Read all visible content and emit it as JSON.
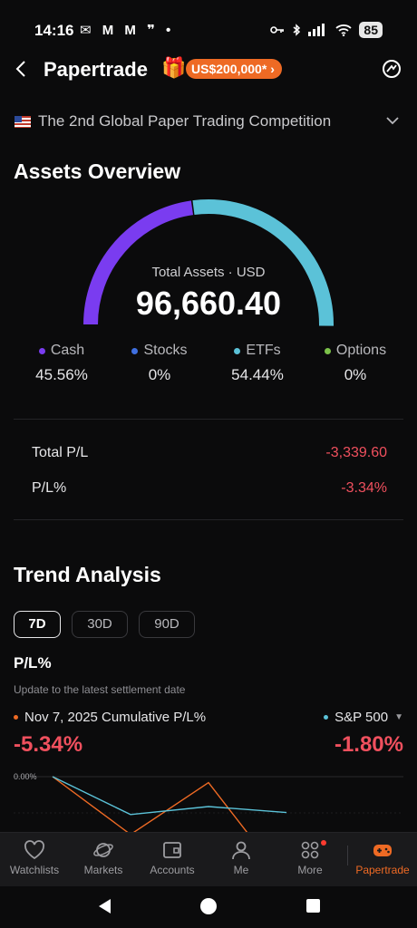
{
  "status_bar": {
    "time": "14:16",
    "notif_glyphs": "✉ M M ❞ •",
    "battery": "85"
  },
  "nav": {
    "title": "Papertrade",
    "promo_badge": "US$200,000*",
    "promo_chevron": "›"
  },
  "competition": {
    "label": "The 2nd Global Paper Trading Competition"
  },
  "assets": {
    "heading": "Assets Overview",
    "total_label": "Total Assets · USD",
    "total_value": "96,660.40",
    "breakdown": [
      {
        "label": "Cash",
        "value": "45.56%",
        "fraction": 0.4556,
        "color": "#7a3cf0"
      },
      {
        "label": "Stocks",
        "value": "0%",
        "fraction": 0,
        "color": "#3f6fe0"
      },
      {
        "label": "ETFs",
        "value": "54.44%",
        "fraction": 0.5444,
        "color": "#5bc2d8"
      },
      {
        "label": "Options",
        "value": "0%",
        "fraction": 0,
        "color": "#7cc24a"
      }
    ]
  },
  "pl": {
    "total_label": "Total P/L",
    "total_value": "-3,339.60",
    "pct_label": "P/L%",
    "pct_value": "-3.34%"
  },
  "trend": {
    "heading": "Trend Analysis",
    "tabs": [
      {
        "label": "7D",
        "active": true
      },
      {
        "label": "30D",
        "active": false
      },
      {
        "label": "90D",
        "active": false
      }
    ],
    "pl_heading": "P/L%",
    "subtitle": "Update to the latest settlement date",
    "series_left_label": "Nov 7, 2025 Cumulative P/L%",
    "series_left_value": "-5.34%",
    "series_left_color": "#ee6a24",
    "series_right_label": "S&P 500",
    "series_right_value": "-1.80%",
    "series_right_color": "#5bc2d8",
    "y_tick": "0.00%"
  },
  "chart_data": {
    "type": "line",
    "y_ticks": [
      "0.00%"
    ],
    "series": [
      {
        "name": "Nov 7, 2025 Cumulative P/L%",
        "values": [
          0.0,
          -2.9,
          -0.3,
          -5.34
        ]
      },
      {
        "name": "S&P 500",
        "values": [
          0.0,
          -1.9,
          -1.5,
          -1.8
        ]
      }
    ]
  },
  "bottom_nav": [
    {
      "label": "Watchlists",
      "icon": "heart-icon",
      "active": false
    },
    {
      "label": "Markets",
      "icon": "planet-icon",
      "active": false
    },
    {
      "label": "Accounts",
      "icon": "wallet-icon",
      "active": false
    },
    {
      "label": "Me",
      "icon": "person-icon",
      "active": false
    },
    {
      "label": "More",
      "icon": "grid-icon",
      "active": false,
      "notification": true
    },
    {
      "label": "Papertrade",
      "icon": "gamepad-icon",
      "active": true
    }
  ]
}
